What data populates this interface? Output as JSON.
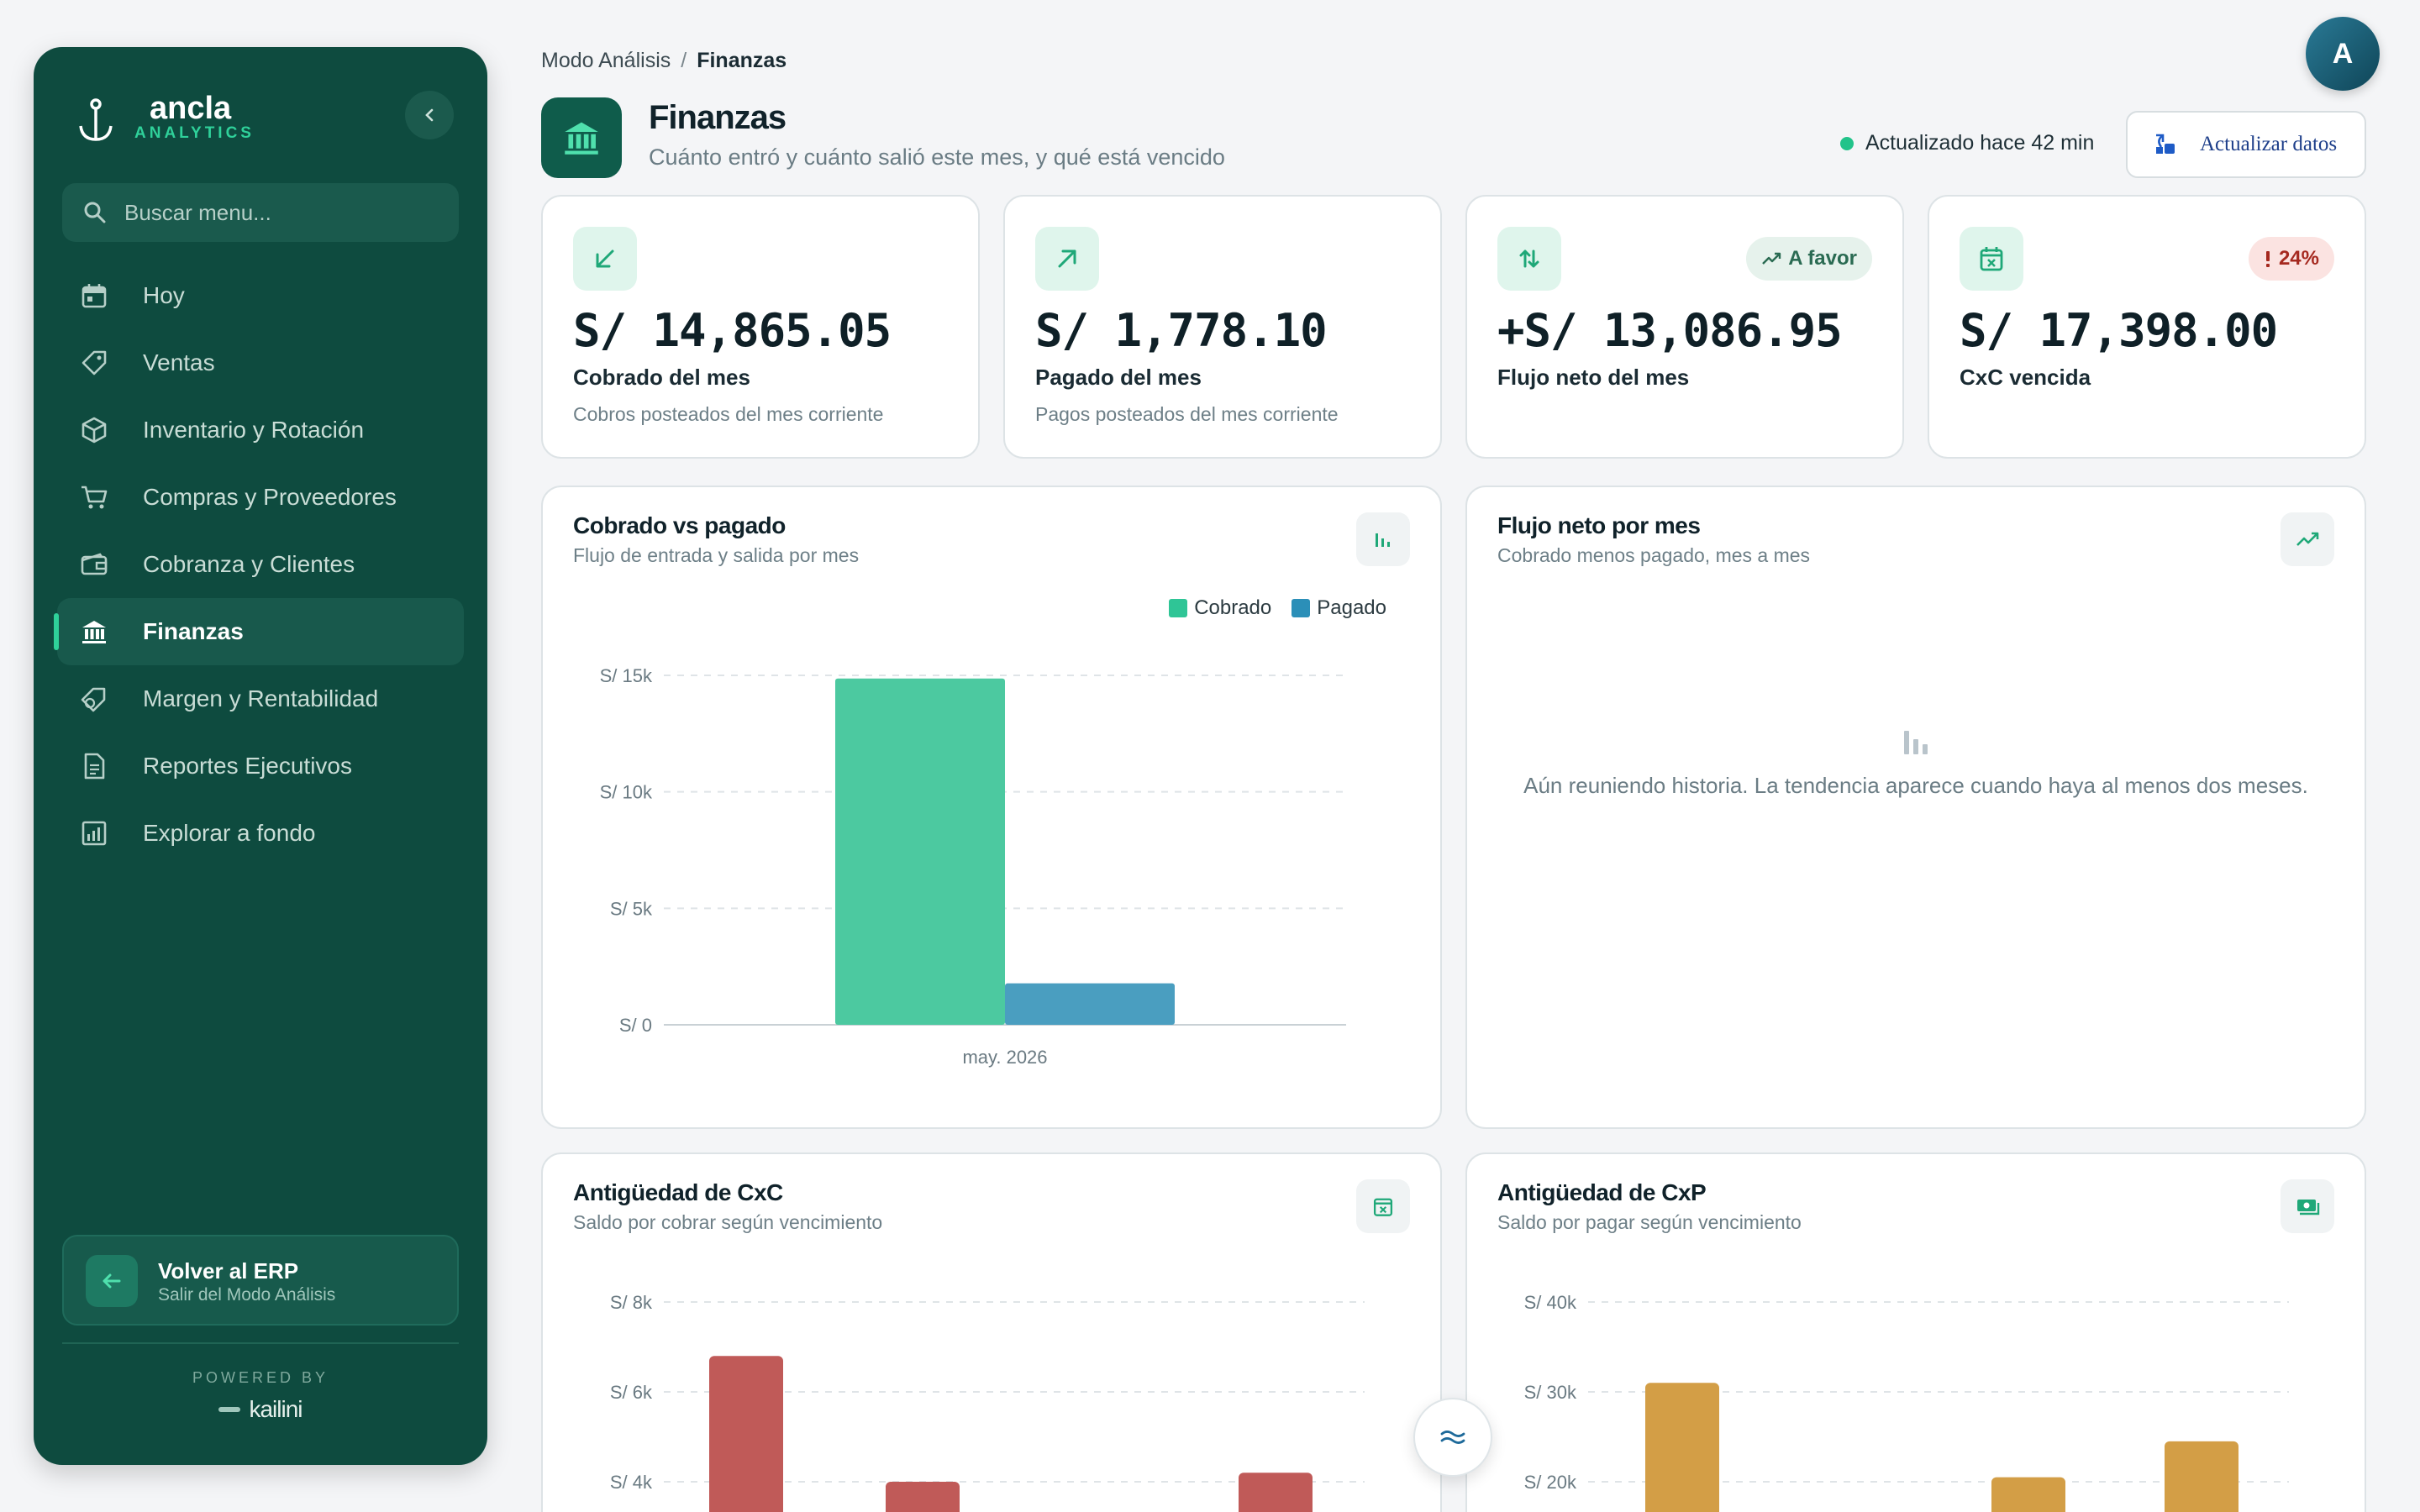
{
  "brand": {
    "name": "ancla",
    "tagline": "ANALYTICS"
  },
  "search": {
    "placeholder": "Buscar menu..."
  },
  "nav": [
    {
      "label": "Hoy",
      "icon": "calendar-icon",
      "active": false
    },
    {
      "label": "Ventas",
      "icon": "tag-icon",
      "active": false
    },
    {
      "label": "Inventario y Rotación",
      "icon": "box-icon",
      "active": false
    },
    {
      "label": "Compras y Proveedores",
      "icon": "cart-icon",
      "active": false
    },
    {
      "label": "Cobranza y Clientes",
      "icon": "wallet-icon",
      "active": false
    },
    {
      "label": "Finanzas",
      "icon": "bank-icon",
      "active": true
    },
    {
      "label": "Margen y Rentabilidad",
      "icon": "price-tag-icon",
      "active": false
    },
    {
      "label": "Reportes Ejecutivos",
      "icon": "document-icon",
      "active": false
    },
    {
      "label": "Explorar a fondo",
      "icon": "analytics-icon",
      "active": false
    }
  ],
  "back": {
    "title": "Volver al ERP",
    "subtitle": "Salir del Modo Análisis"
  },
  "footer": {
    "powered": "POWERED BY",
    "brand": "kailini"
  },
  "breadcrumb": {
    "parent": "Modo Análisis",
    "separator": "/",
    "current": "Finanzas"
  },
  "header": {
    "title": "Finanzas",
    "subtitle": "Cuánto entró y cuánto salió este mes, y qué está vencido",
    "status": "Actualizado hace 42 min",
    "refresh_label": "Actualizar datos",
    "avatar": "A"
  },
  "kpis": [
    {
      "value": "S/ 14,865.05",
      "label": "Cobrado del mes",
      "sub": "Cobros posteados del mes corriente",
      "icon": "arrow-down-left-icon"
    },
    {
      "value": "S/ 1,778.10",
      "label": "Pagado del mes",
      "sub": "Pagos posteados del mes corriente",
      "icon": "arrow-up-right-icon"
    },
    {
      "value": "+S/ 13,086.95",
      "label": "Flujo neto del mes",
      "sub": "",
      "icon": "swap-vertical-icon",
      "badge": "A favor"
    },
    {
      "value": "S/ 17,398.00",
      "label": "CxC vencida",
      "sub": "",
      "icon": "calendar-x-icon",
      "badge": "24%"
    }
  ],
  "charts": {
    "cobrado_pagado": {
      "title": "Cobrado vs pagado",
      "subtitle": "Flujo de entrada y salida por mes"
    },
    "flujo_neto": {
      "title": "Flujo neto por mes",
      "subtitle": "Cobrado menos pagado, mes a mes",
      "empty": "Aún reuniendo historia. La tendencia aparece cuando haya al menos dos meses."
    },
    "antiguedad_cxc": {
      "title": "Antigüedad de CxC",
      "subtitle": "Saldo por cobrar según vencimiento"
    },
    "antiguedad_cxp": {
      "title": "Antigüedad de CxP",
      "subtitle": "Saldo por pagar según vencimiento"
    }
  },
  "colors": {
    "sidebar": "#0e4b3f",
    "cobrado": "#4cc9a0",
    "pagado": "#4a9ec0",
    "cxc": "#c05a58",
    "cxp": "#d39e46",
    "accent": "#2fd19a"
  },
  "chart_data": [
    {
      "type": "bar",
      "categories": [
        "may. 2026"
      ],
      "series": [
        {
          "name": "Cobrado",
          "values": [
            14865.05
          ]
        },
        {
          "name": "Pagado",
          "values": [
            1778.1
          ]
        }
      ],
      "ylim": [
        0,
        15000
      ],
      "yticks": [
        0,
        5000,
        10000,
        15000
      ],
      "ytick_labels": [
        "S/ 0",
        "S/ 5k",
        "S/ 10k",
        "S/ 15k"
      ],
      "legend": "top-right"
    },
    {
      "type": "bar",
      "categories": [
        "",
        "",
        "",
        ""
      ],
      "values": [
        6800,
        4000,
        null,
        4200
      ],
      "ytick_labels_visible": [
        "S/ 4k",
        "S/ 6k",
        "S/ 8k"
      ],
      "yticks_visible": [
        4000,
        6000,
        8000
      ]
    },
    {
      "type": "bar",
      "categories": [
        "",
        "",
        "",
        ""
      ],
      "values": [
        31000,
        null,
        20500,
        24500
      ],
      "ytick_labels_visible": [
        "S/ 20k",
        "S/ 30k",
        "S/ 40k"
      ],
      "yticks_visible": [
        20000,
        30000,
        40000
      ]
    }
  ]
}
